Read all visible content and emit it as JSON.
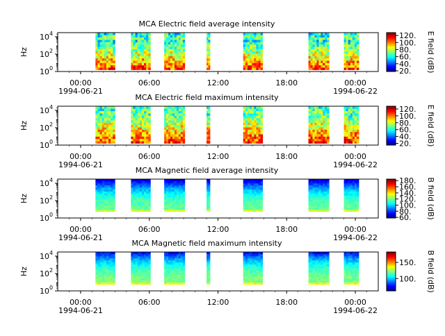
{
  "chart_data": [
    {
      "type": "heatmap",
      "title": "MCA  Electric field average intensity",
      "ylabel": "Hz",
      "y_scale": "log",
      "ylim": [
        1,
        30000
      ],
      "y_ticks": [
        {
          "value": 1,
          "base": "10",
          "exp": "0"
        },
        {
          "value": 100,
          "base": "10",
          "exp": "2"
        },
        {
          "value": 10000,
          "base": "10",
          "exp": "4"
        }
      ],
      "xlim_hours": [
        -2,
        26
      ],
      "x_ticks": [
        {
          "hour": 0,
          "label": "00:00"
        },
        {
          "hour": 6,
          "label": "06:00"
        },
        {
          "hour": 12,
          "label": "12:00"
        },
        {
          "hour": 18,
          "label": "18:00"
        },
        {
          "hour": 24,
          "label": "00:00"
        }
      ],
      "date_labels": [
        "1994-06-21",
        "1994-06-22"
      ],
      "colorbar": {
        "label": "E field (dB)",
        "range": [
          18,
          128
        ],
        "ticks": [
          "20.",
          "40.",
          "60.",
          "80.",
          "100.",
          "120."
        ],
        "tick_values": [
          20,
          40,
          60,
          80,
          100,
          120
        ]
      },
      "field": "E",
      "segments_hours": [
        [
          1.3,
          3.0
        ],
        [
          4.4,
          6.1
        ],
        [
          7.3,
          9.1
        ],
        [
          11.0,
          11.3
        ],
        [
          14.2,
          15.9
        ],
        [
          19.9,
          21.7
        ],
        [
          23.0,
          24.3
        ]
      ],
      "frequency_range": [
        1.6,
        30000
      ],
      "spectrum_db": {
        "low_freq": 105,
        "high_freq": 50,
        "upper_band": 60
      }
    },
    {
      "type": "heatmap",
      "title": "MCA  Electric field maximum intensity",
      "ylabel": "Hz",
      "y_scale": "log",
      "ylim": [
        1,
        30000
      ],
      "y_ticks": [
        {
          "value": 1,
          "base": "10",
          "exp": "0"
        },
        {
          "value": 100,
          "base": "10",
          "exp": "2"
        },
        {
          "value": 10000,
          "base": "10",
          "exp": "4"
        }
      ],
      "xlim_hours": [
        -2,
        26
      ],
      "x_ticks": [
        {
          "hour": 0,
          "label": "00:00"
        },
        {
          "hour": 6,
          "label": "06:00"
        },
        {
          "hour": 12,
          "label": "12:00"
        },
        {
          "hour": 18,
          "label": "18:00"
        },
        {
          "hour": 24,
          "label": "00:00"
        }
      ],
      "date_labels": [
        "1994-06-21",
        "1994-06-22"
      ],
      "colorbar": {
        "label": "E field (dB)",
        "range": [
          15,
          128
        ],
        "ticks": [
          "20.",
          "40.",
          "60.",
          "80.",
          "100.",
          "120."
        ],
        "tick_values": [
          20,
          40,
          60,
          80,
          100,
          120
        ]
      },
      "field": "E",
      "segments_hours": [
        [
          1.3,
          3.0
        ],
        [
          4.4,
          6.1
        ],
        [
          7.3,
          9.1
        ],
        [
          11.0,
          11.3
        ],
        [
          14.2,
          15.9
        ],
        [
          19.9,
          21.7
        ],
        [
          23.0,
          24.3
        ]
      ],
      "frequency_range": [
        1.6,
        30000
      ],
      "spectrum_db": {
        "low_freq": 108,
        "high_freq": 55,
        "upper_band": 62
      }
    },
    {
      "type": "heatmap",
      "title": "MCA  Magnetic field average intensity",
      "ylabel": "Hz",
      "y_scale": "log",
      "ylim": [
        1,
        30000
      ],
      "y_ticks": [
        {
          "value": 1,
          "base": "10",
          "exp": "0"
        },
        {
          "value": 100,
          "base": "10",
          "exp": "2"
        },
        {
          "value": 10000,
          "base": "10",
          "exp": "4"
        }
      ],
      "xlim_hours": [
        -2,
        26
      ],
      "x_ticks": [
        {
          "hour": 0,
          "label": "00:00"
        },
        {
          "hour": 6,
          "label": "06:00"
        },
        {
          "hour": 12,
          "label": "12:00"
        },
        {
          "hour": 18,
          "label": "18:00"
        },
        {
          "hour": 24,
          "label": "00:00"
        }
      ],
      "date_labels": [
        "1994-06-21",
        "1994-06-22"
      ],
      "colorbar": {
        "label": "B field (dB)",
        "range": [
          58,
          185
        ],
        "ticks": [
          "60.",
          "80.",
          "100.",
          "120.",
          "140.",
          "160.",
          "180."
        ],
        "tick_values": [
          60,
          80,
          100,
          120,
          140,
          160,
          180
        ]
      },
      "field": "B",
      "segments_hours": [
        [
          1.3,
          3.0
        ],
        [
          4.4,
          6.1
        ],
        [
          7.3,
          9.1
        ],
        [
          11.0,
          11.3
        ],
        [
          14.2,
          15.9
        ],
        [
          19.9,
          21.7
        ],
        [
          23.0,
          24.3
        ]
      ],
      "frequency_range": [
        5.6,
        30000
      ],
      "spectrum_db": {
        "low_freq": 118,
        "high_freq": 70
      }
    },
    {
      "type": "heatmap",
      "title": "MCA  Magnetic field maximum intensity",
      "ylabel": "Hz",
      "y_scale": "log",
      "ylim": [
        1,
        30000
      ],
      "y_ticks": [
        {
          "value": 1,
          "base": "10",
          "exp": "0"
        },
        {
          "value": 100,
          "base": "10",
          "exp": "2"
        },
        {
          "value": 10000,
          "base": "10",
          "exp": "4"
        }
      ],
      "xlim_hours": [
        -2,
        26
      ],
      "x_ticks": [
        {
          "hour": 0,
          "label": "00:00"
        },
        {
          "hour": 6,
          "label": "06:00"
        },
        {
          "hour": 12,
          "label": "12:00"
        },
        {
          "hour": 18,
          "label": "18:00"
        },
        {
          "hour": 24,
          "label": "00:00"
        }
      ],
      "date_labels": [
        "1994-06-21",
        "1994-06-22"
      ],
      "colorbar": {
        "label": "B field (dB)",
        "range": [
          62,
          182
        ],
        "ticks": [
          "100.",
          "150."
        ],
        "tick_values": [
          100,
          150
        ]
      },
      "field": "B",
      "segments_hours": [
        [
          1.3,
          3.0
        ],
        [
          4.4,
          6.1
        ],
        [
          7.3,
          9.1
        ],
        [
          11.0,
          11.3
        ],
        [
          14.2,
          15.9
        ],
        [
          19.9,
          21.7
        ],
        [
          23.0,
          24.3
        ]
      ],
      "frequency_range": [
        5.6,
        30000
      ],
      "spectrum_db": {
        "low_freq": 122,
        "high_freq": 80
      }
    }
  ]
}
